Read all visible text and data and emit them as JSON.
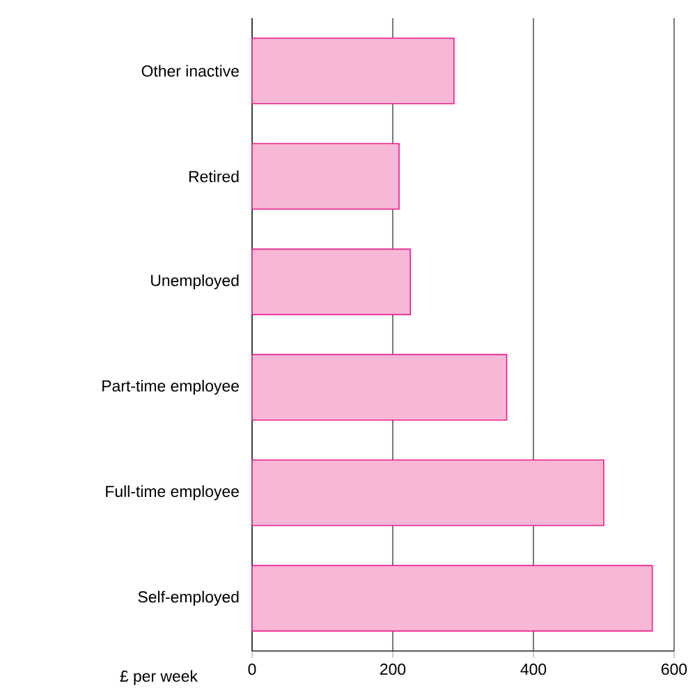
{
  "chart_data": {
    "type": "bar",
    "orientation": "horizontal",
    "xlabel": "£ per week",
    "categories": [
      "Other inactive",
      "Retired",
      "Unemployed",
      "Part-time employee",
      "Full-time employee",
      "Self-employed"
    ],
    "values": [
      287,
      209,
      225,
      362,
      500,
      569
    ],
    "color": "#f6b8d6",
    "xlim": [
      0,
      600
    ],
    "xticks": [
      0,
      200,
      400,
      600
    ],
    "grid": "x"
  }
}
